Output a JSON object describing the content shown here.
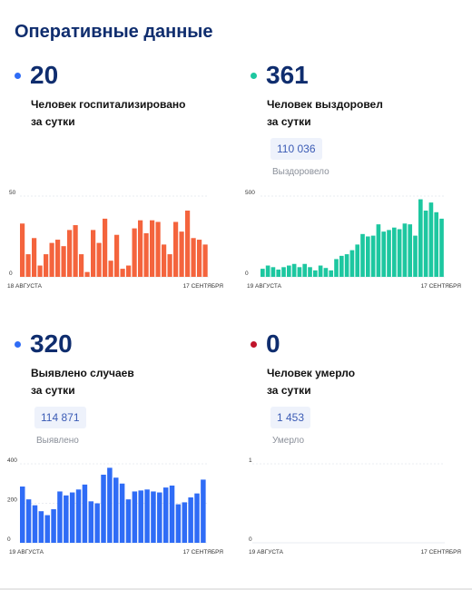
{
  "title": "Оперативные данные",
  "colors": {
    "hospitalized": "#f4643d",
    "recovered": "#1dc7a0",
    "cases": "#2f6cf6",
    "deaths": "#c0142b",
    "heading": "#0f2d6e"
  },
  "cards": {
    "hospitalized": {
      "value": "20",
      "desc_line1": "Человек госпитализировано",
      "desc_line2": "за сутки"
    },
    "recovered": {
      "value": "361",
      "desc_line1": "Человек выздоровел",
      "desc_line2": "за сутки",
      "total": "110 036",
      "total_label": "Выздоровело"
    },
    "cases": {
      "value": "320",
      "desc_line1": "Выявлено случаев",
      "desc_line2": "за сутки",
      "total": "114 871",
      "total_label": "Выявлено"
    },
    "deaths": {
      "value": "0",
      "desc_line1": "Человек умерло",
      "desc_line2": "за сутки",
      "total": "1 453",
      "total_label": "Умерло"
    }
  },
  "chart_data": [
    {
      "id": "hospitalized",
      "type": "bar",
      "color": "#f4643d",
      "ylim": [
        0,
        50
      ],
      "y_ticks": [
        "50",
        "0"
      ],
      "x_start_label": "18 АВГУСТА",
      "x_end_label": "17 СЕНТЯБРЯ",
      "values": [
        33,
        14,
        24,
        7,
        14,
        21,
        23,
        19,
        29,
        32,
        14,
        3,
        29,
        21,
        36,
        10,
        26,
        5,
        7,
        30,
        35,
        27,
        35,
        34,
        20,
        14,
        34,
        28,
        41,
        24,
        23,
        20
      ]
    },
    {
      "id": "recovered",
      "type": "bar",
      "color": "#1dc7a0",
      "ylim": [
        0,
        500
      ],
      "y_ticks": [
        "500",
        "0"
      ],
      "x_start_label": "19 АВГУСТА",
      "x_end_label": "17 СЕНТЯБРЯ",
      "values": [
        50,
        70,
        60,
        45,
        60,
        70,
        80,
        60,
        80,
        60,
        40,
        70,
        55,
        40,
        110,
        130,
        140,
        165,
        200,
        265,
        250,
        255,
        325,
        280,
        290,
        305,
        295,
        330,
        325,
        255,
        480,
        410,
        460,
        400,
        360
      ]
    },
    {
      "id": "cases",
      "type": "bar",
      "color": "#2f6cf6",
      "ylim": [
        0,
        400
      ],
      "y_ticks": [
        "400",
        "200",
        "0"
      ],
      "x_start_label": "19 АВГУСТА",
      "x_end_label": "17 СЕНТЯБРЯ",
      "values": [
        285,
        220,
        190,
        160,
        140,
        170,
        260,
        240,
        255,
        270,
        295,
        210,
        200,
        345,
        380,
        330,
        300,
        220,
        260,
        265,
        270,
        260,
        255,
        280,
        290,
        195,
        205,
        230,
        250,
        320
      ]
    },
    {
      "id": "deaths",
      "type": "bar",
      "color": "#c0142b",
      "ylim": [
        0,
        1
      ],
      "y_ticks": [
        "1",
        "0"
      ],
      "x_start_label": "19 АВГУСТА",
      "x_end_label": "17 СЕНТЯБРЯ",
      "values": []
    }
  ]
}
